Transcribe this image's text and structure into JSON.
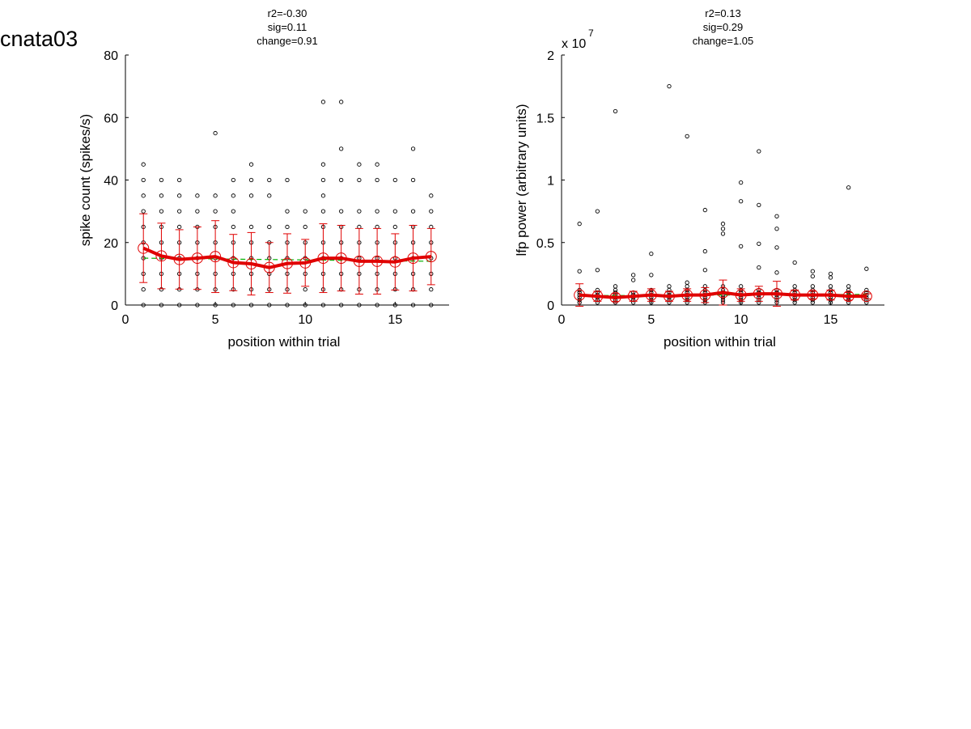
{
  "figure_title": "cnata03",
  "colors": {
    "mean": "#e00000",
    "fit": "#00b000",
    "raw": "#000000",
    "background": "#ffffff"
  },
  "chart_data": [
    {
      "type": "scatter",
      "annotations": [
        "r2=-0.30",
        "sig=0.11",
        "change=0.91"
      ],
      "ylabel": "spike count (spikes/s)",
      "xlabel": "position within trial",
      "exponent_label": "",
      "xlim": [
        0,
        18
      ],
      "ylim": [
        0,
        80
      ],
      "xticks": [
        0,
        5,
        10,
        15
      ],
      "xtick_labels": [
        "0",
        "5",
        "10",
        "15"
      ],
      "yticks": [
        0,
        20,
        40,
        60,
        80
      ],
      "ytick_labels": [
        "0",
        "20",
        "40",
        "60",
        "80"
      ],
      "raw_points": [
        [
          1,
          0
        ],
        [
          1,
          5
        ],
        [
          1,
          10
        ],
        [
          1,
          15
        ],
        [
          1,
          20
        ],
        [
          1,
          25
        ],
        [
          1,
          30
        ],
        [
          1,
          35
        ],
        [
          1,
          40
        ],
        [
          1,
          45
        ],
        [
          2,
          0
        ],
        [
          2,
          5
        ],
        [
          2,
          10
        ],
        [
          2,
          15
        ],
        [
          2,
          20
        ],
        [
          2,
          25
        ],
        [
          2,
          30
        ],
        [
          2,
          35
        ],
        [
          2,
          40
        ],
        [
          3,
          0
        ],
        [
          3,
          5
        ],
        [
          3,
          10
        ],
        [
          3,
          15
        ],
        [
          3,
          20
        ],
        [
          3,
          25
        ],
        [
          3,
          30
        ],
        [
          3,
          35
        ],
        [
          3,
          40
        ],
        [
          4,
          0
        ],
        [
          4,
          5
        ],
        [
          4,
          10
        ],
        [
          4,
          15
        ],
        [
          4,
          20
        ],
        [
          4,
          25
        ],
        [
          4,
          30
        ],
        [
          4,
          35
        ],
        [
          5,
          0
        ],
        [
          5,
          5
        ],
        [
          5,
          10
        ],
        [
          5,
          15
        ],
        [
          5,
          20
        ],
        [
          5,
          25
        ],
        [
          5,
          30
        ],
        [
          5,
          35
        ],
        [
          5,
          55
        ],
        [
          6,
          0
        ],
        [
          6,
          5
        ],
        [
          6,
          10
        ],
        [
          6,
          15
        ],
        [
          6,
          20
        ],
        [
          6,
          25
        ],
        [
          6,
          30
        ],
        [
          6,
          35
        ],
        [
          6,
          40
        ],
        [
          7,
          0
        ],
        [
          7,
          5
        ],
        [
          7,
          10
        ],
        [
          7,
          15
        ],
        [
          7,
          20
        ],
        [
          7,
          25
        ],
        [
          7,
          35
        ],
        [
          7,
          40
        ],
        [
          7,
          45
        ],
        [
          8,
          0
        ],
        [
          8,
          5
        ],
        [
          8,
          10
        ],
        [
          8,
          15
        ],
        [
          8,
          20
        ],
        [
          8,
          25
        ],
        [
          8,
          35
        ],
        [
          8,
          40
        ],
        [
          9,
          0
        ],
        [
          9,
          5
        ],
        [
          9,
          10
        ],
        [
          9,
          15
        ],
        [
          9,
          20
        ],
        [
          9,
          25
        ],
        [
          9,
          30
        ],
        [
          9,
          40
        ],
        [
          10,
          0
        ],
        [
          10,
          5
        ],
        [
          10,
          10
        ],
        [
          10,
          15
        ],
        [
          10,
          20
        ],
        [
          10,
          25
        ],
        [
          10,
          30
        ],
        [
          11,
          0
        ],
        [
          11,
          5
        ],
        [
          11,
          10
        ],
        [
          11,
          15
        ],
        [
          11,
          20
        ],
        [
          11,
          25
        ],
        [
          11,
          30
        ],
        [
          11,
          35
        ],
        [
          11,
          40
        ],
        [
          11,
          45
        ],
        [
          11,
          65
        ],
        [
          12,
          0
        ],
        [
          12,
          5
        ],
        [
          12,
          10
        ],
        [
          12,
          15
        ],
        [
          12,
          20
        ],
        [
          12,
          25
        ],
        [
          12,
          30
        ],
        [
          12,
          40
        ],
        [
          12,
          50
        ],
        [
          12,
          65
        ],
        [
          13,
          0
        ],
        [
          13,
          5
        ],
        [
          13,
          10
        ],
        [
          13,
          15
        ],
        [
          13,
          20
        ],
        [
          13,
          25
        ],
        [
          13,
          30
        ],
        [
          13,
          40
        ],
        [
          13,
          45
        ],
        [
          14,
          0
        ],
        [
          14,
          5
        ],
        [
          14,
          10
        ],
        [
          14,
          15
        ],
        [
          14,
          20
        ],
        [
          14,
          25
        ],
        [
          14,
          30
        ],
        [
          14,
          40
        ],
        [
          14,
          45
        ],
        [
          15,
          0
        ],
        [
          15,
          5
        ],
        [
          15,
          10
        ],
        [
          15,
          15
        ],
        [
          15,
          20
        ],
        [
          15,
          25
        ],
        [
          15,
          30
        ],
        [
          15,
          40
        ],
        [
          16,
          0
        ],
        [
          16,
          5
        ],
        [
          16,
          10
        ],
        [
          16,
          15
        ],
        [
          16,
          20
        ],
        [
          16,
          25
        ],
        [
          16,
          30
        ],
        [
          16,
          40
        ],
        [
          16,
          50
        ],
        [
          17,
          0
        ],
        [
          17,
          5
        ],
        [
          17,
          10
        ],
        [
          17,
          15
        ],
        [
          17,
          20
        ],
        [
          17,
          25
        ],
        [
          17,
          30
        ],
        [
          17,
          35
        ]
      ],
      "mean": {
        "x": [
          1,
          2,
          3,
          4,
          5,
          6,
          7,
          8,
          9,
          10,
          11,
          12,
          13,
          14,
          15,
          16,
          17
        ],
        "y": [
          18.2,
          15.7,
          14.6,
          15.0,
          15.5,
          13.6,
          13.2,
          12.0,
          13.3,
          13.5,
          15.0,
          15.0,
          14.0,
          14.0,
          13.8,
          15.0,
          15.5
        ],
        "err": [
          11,
          10.5,
          9.5,
          10,
          11.5,
          9,
          10,
          8,
          9.5,
          7.5,
          11,
          10.5,
          10.5,
          10.5,
          9,
          10.5,
          9
        ]
      },
      "fit": {
        "x": [
          1,
          17
        ],
        "y": [
          15.0,
          14.0
        ]
      }
    },
    {
      "type": "scatter",
      "annotations": [
        "r2=0.13",
        "sig=0.29",
        "change=1.05"
      ],
      "ylabel": "lfp power (arbitrary units)",
      "xlabel": "position within trial",
      "exponent_label": "x 10",
      "exponent_power": "7",
      "xlim": [
        0,
        18
      ],
      "ylim": [
        0,
        2
      ],
      "xticks": [
        0,
        5,
        10,
        15
      ],
      "xtick_labels": [
        "0",
        "5",
        "10",
        "15"
      ],
      "yticks": [
        0,
        0.5,
        1,
        1.5,
        2
      ],
      "ytick_labels": [
        "0",
        "0.5",
        "1",
        "1.5",
        "2"
      ],
      "raw_points": [
        [
          1,
          0.02
        ],
        [
          1,
          0.04
        ],
        [
          1,
          0.06
        ],
        [
          1,
          0.08
        ],
        [
          1,
          0.1
        ],
        [
          1,
          0.12
        ],
        [
          1,
          0.27
        ],
        [
          1,
          0.65
        ],
        [
          2,
          0.02
        ],
        [
          2,
          0.04
        ],
        [
          2,
          0.06
        ],
        [
          2,
          0.08
        ],
        [
          2,
          0.1
        ],
        [
          2,
          0.12
        ],
        [
          2,
          0.28
        ],
        [
          2,
          0.75
        ],
        [
          3,
          0.02
        ],
        [
          3,
          0.04
        ],
        [
          3,
          0.06
        ],
        [
          3,
          0.08
        ],
        [
          3,
          0.1
        ],
        [
          3,
          0.12
        ],
        [
          3,
          0.15
        ],
        [
          3,
          1.55
        ],
        [
          4,
          0.02
        ],
        [
          4,
          0.04
        ],
        [
          4,
          0.06
        ],
        [
          4,
          0.08
        ],
        [
          4,
          0.1
        ],
        [
          4,
          0.2
        ],
        [
          4,
          0.24
        ],
        [
          5,
          0.02
        ],
        [
          5,
          0.04
        ],
        [
          5,
          0.06
        ],
        [
          5,
          0.08
        ],
        [
          5,
          0.1
        ],
        [
          5,
          0.12
        ],
        [
          5,
          0.24
        ],
        [
          5,
          0.41
        ],
        [
          6,
          0.02
        ],
        [
          6,
          0.04
        ],
        [
          6,
          0.06
        ],
        [
          6,
          0.08
        ],
        [
          6,
          0.1
        ],
        [
          6,
          0.12
        ],
        [
          6,
          0.15
        ],
        [
          6,
          1.75
        ],
        [
          7,
          0.02
        ],
        [
          7,
          0.04
        ],
        [
          7,
          0.06
        ],
        [
          7,
          0.08
        ],
        [
          7,
          0.1
        ],
        [
          7,
          0.12
        ],
        [
          7,
          0.15
        ],
        [
          7,
          0.18
        ],
        [
          7,
          1.35
        ],
        [
          8,
          0.02
        ],
        [
          8,
          0.04
        ],
        [
          8,
          0.06
        ],
        [
          8,
          0.08
        ],
        [
          8,
          0.1
        ],
        [
          8,
          0.12
        ],
        [
          8,
          0.15
        ],
        [
          8,
          0.28
        ],
        [
          8,
          0.43
        ],
        [
          8,
          0.76
        ],
        [
          9,
          0.02
        ],
        [
          9,
          0.04
        ],
        [
          9,
          0.06
        ],
        [
          9,
          0.08
        ],
        [
          9,
          0.1
        ],
        [
          9,
          0.12
        ],
        [
          9,
          0.15
        ],
        [
          9,
          0.57
        ],
        [
          9,
          0.61
        ],
        [
          9,
          0.65
        ],
        [
          10,
          0.02
        ],
        [
          10,
          0.04
        ],
        [
          10,
          0.06
        ],
        [
          10,
          0.08
        ],
        [
          10,
          0.1
        ],
        [
          10,
          0.12
        ],
        [
          10,
          0.15
        ],
        [
          10,
          0.47
        ],
        [
          10,
          0.83
        ],
        [
          10,
          0.98
        ],
        [
          11,
          0.02
        ],
        [
          11,
          0.04
        ],
        [
          11,
          0.06
        ],
        [
          11,
          0.08
        ],
        [
          11,
          0.1
        ],
        [
          11,
          0.12
        ],
        [
          11,
          0.3
        ],
        [
          11,
          0.49
        ],
        [
          11,
          0.8
        ],
        [
          11,
          1.23
        ],
        [
          12,
          0.02
        ],
        [
          12,
          0.04
        ],
        [
          12,
          0.06
        ],
        [
          12,
          0.08
        ],
        [
          12,
          0.1
        ],
        [
          12,
          0.12
        ],
        [
          12,
          0.26
        ],
        [
          12,
          0.46
        ],
        [
          12,
          0.61
        ],
        [
          12,
          0.71
        ],
        [
          13,
          0.02
        ],
        [
          13,
          0.04
        ],
        [
          13,
          0.06
        ],
        [
          13,
          0.08
        ],
        [
          13,
          0.1
        ],
        [
          13,
          0.12
        ],
        [
          13,
          0.15
        ],
        [
          13,
          0.34
        ],
        [
          14,
          0.02
        ],
        [
          14,
          0.04
        ],
        [
          14,
          0.06
        ],
        [
          14,
          0.08
        ],
        [
          14,
          0.1
        ],
        [
          14,
          0.12
        ],
        [
          14,
          0.15
        ],
        [
          14,
          0.23
        ],
        [
          14,
          0.27
        ],
        [
          15,
          0.02
        ],
        [
          15,
          0.04
        ],
        [
          15,
          0.06
        ],
        [
          15,
          0.08
        ],
        [
          15,
          0.1
        ],
        [
          15,
          0.12
        ],
        [
          15,
          0.15
        ],
        [
          15,
          0.22
        ],
        [
          15,
          0.25
        ],
        [
          16,
          0.02
        ],
        [
          16,
          0.04
        ],
        [
          16,
          0.06
        ],
        [
          16,
          0.08
        ],
        [
          16,
          0.1
        ],
        [
          16,
          0.12
        ],
        [
          16,
          0.15
        ],
        [
          16,
          0.94
        ],
        [
          17,
          0.02
        ],
        [
          17,
          0.04
        ],
        [
          17,
          0.06
        ],
        [
          17,
          0.08
        ],
        [
          17,
          0.1
        ],
        [
          17,
          0.12
        ],
        [
          17,
          0.29
        ]
      ],
      "mean": {
        "x": [
          1,
          2,
          3,
          4,
          5,
          6,
          7,
          8,
          9,
          10,
          11,
          12,
          13,
          14,
          15,
          16,
          17
        ],
        "y": [
          0.08,
          0.07,
          0.06,
          0.07,
          0.08,
          0.07,
          0.08,
          0.08,
          0.1,
          0.08,
          0.09,
          0.09,
          0.08,
          0.08,
          0.08,
          0.07,
          0.07
        ],
        "err": [
          0.09,
          0.04,
          0.03,
          0.04,
          0.05,
          0.04,
          0.05,
          0.06,
          0.1,
          0.05,
          0.06,
          0.1,
          0.04,
          0.03,
          0.04,
          0.03,
          0.02
        ]
      },
      "fit": {
        "x": [
          1,
          17
        ],
        "y": [
          0.075,
          0.085
        ]
      }
    }
  ]
}
